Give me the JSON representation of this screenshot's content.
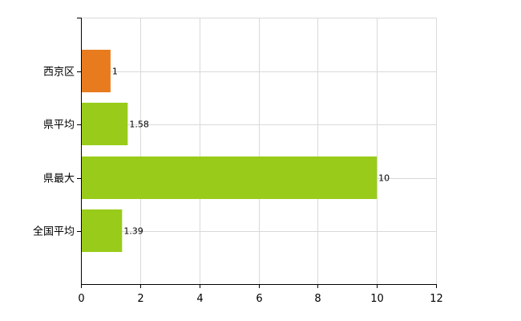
{
  "chart_data": {
    "type": "bar",
    "orientation": "horizontal",
    "categories": [
      "西京区",
      "県平均",
      "県最大",
      "全国平均"
    ],
    "values": [
      1,
      1.58,
      10,
      1.39
    ],
    "data_labels": [
      "1",
      "1.58",
      "10",
      "1.39"
    ],
    "bar_colors": [
      "#e87b1e",
      "#99cc1a",
      "#99cc1a",
      "#99cc1a"
    ],
    "xlim": [
      0,
      12
    ],
    "x_ticks": [
      0,
      2,
      4,
      6,
      8,
      10,
      12
    ],
    "x_tick_labels": [
      "0",
      "2",
      "4",
      "6",
      "8",
      "10",
      "12"
    ],
    "grid": true,
    "legend": "none",
    "title": "",
    "xlabel": "",
    "ylabel": ""
  }
}
